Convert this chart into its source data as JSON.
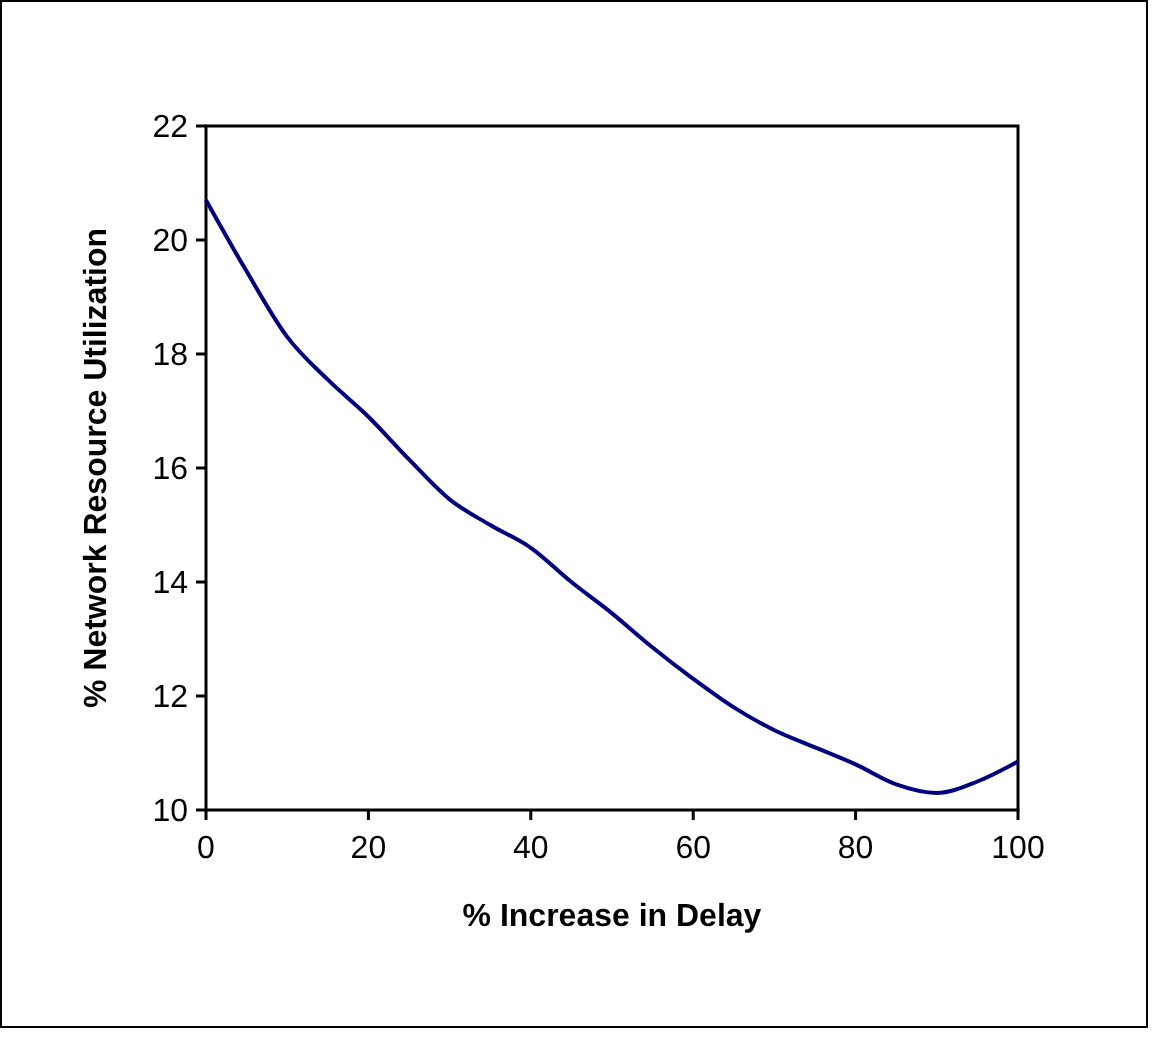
{
  "chart_data": {
    "type": "line",
    "xlabel": "% Increase in Delay",
    "ylabel": "% Network Resource Utilization",
    "x": [
      0,
      5,
      10,
      15,
      20,
      25,
      30,
      35,
      40,
      45,
      50,
      55,
      60,
      65,
      70,
      75,
      80,
      85,
      90,
      95,
      100
    ],
    "series": [
      {
        "color": "#000080",
        "values": [
          20.7,
          19.45,
          18.3,
          17.55,
          16.9,
          16.15,
          15.45,
          15.0,
          14.6,
          14.0,
          13.45,
          12.85,
          12.3,
          11.8,
          11.4,
          11.1,
          10.8,
          10.45,
          10.3,
          10.5,
          10.85
        ]
      }
    ],
    "xlim": [
      0,
      100
    ],
    "xticks": [
      0,
      20,
      40,
      60,
      80,
      100
    ],
    "ylim": [
      10,
      22
    ],
    "yticks": [
      10,
      12,
      14,
      16,
      18,
      20,
      22
    ],
    "grid": false,
    "marker": "none",
    "line_style": "solid"
  }
}
